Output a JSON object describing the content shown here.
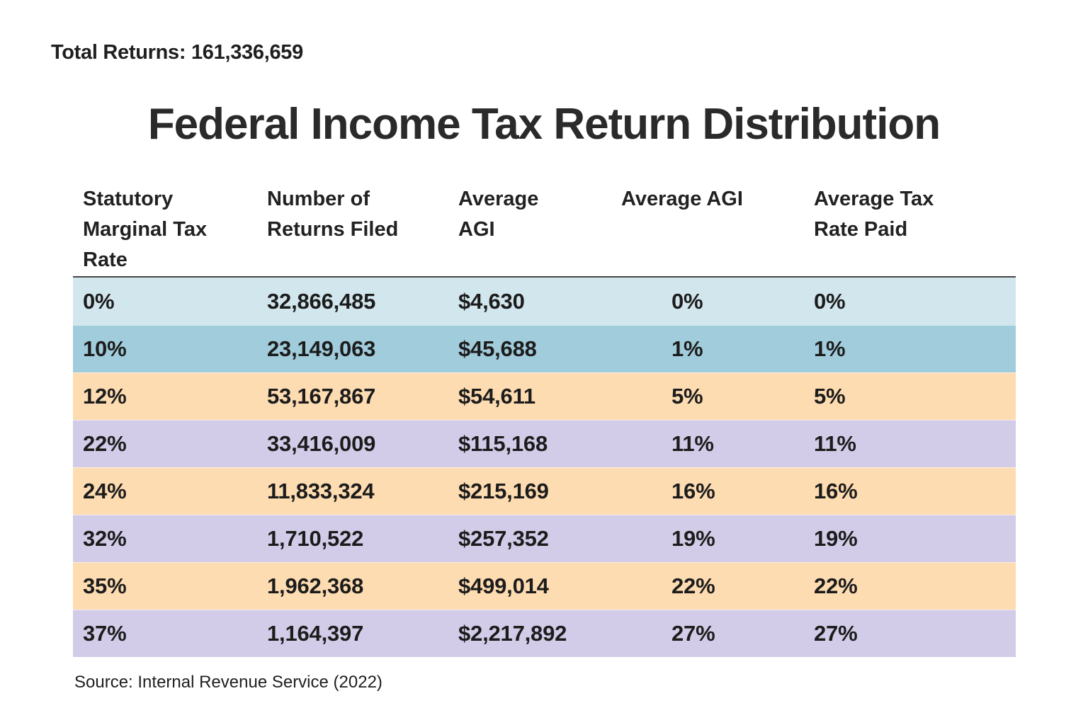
{
  "header": {
    "total_returns": "Total Returns: 161,336,659",
    "title": "Federal Income Tax Return Distribution"
  },
  "footer": {
    "source": "Source: Internal Revenue Service (2022)"
  },
  "colors": {
    "row_blue_light": "#d2e6ee",
    "row_blue_medium": "#a1ccdb",
    "row_peach": "#fedcb2",
    "row_lavender": "#d2cce8",
    "header_rule": "#454545",
    "text": "#1f1f1f"
  },
  "table": {
    "headers": [
      "Statutory Marginal Tax Rate",
      "Number of Returns Filed",
      "Average AGI",
      "Average AGI",
      "Average Tax Rate Paid"
    ],
    "rows": [
      {
        "rate": "0%",
        "returns": "32,866,485",
        "avg_agi": "$4,630",
        "avg_agi_pct": "0%",
        "avg_tax_pct": "0%",
        "bg": "#d2e6ee"
      },
      {
        "rate": "10%",
        "returns": "23,149,063",
        "avg_agi": "$45,688",
        "avg_agi_pct": "1%",
        "avg_tax_pct": "1%",
        "bg": "#a1ccdb"
      },
      {
        "rate": "12%",
        "returns": "53,167,867",
        "avg_agi": "$54,611",
        "avg_agi_pct": "5%",
        "avg_tax_pct": "5%",
        "bg": "#fedcb2"
      },
      {
        "rate": "22%",
        "returns": "33,416,009",
        "avg_agi": "$115,168",
        "avg_agi_pct": "11%",
        "avg_tax_pct": "11%",
        "bg": "#d2cce8"
      },
      {
        "rate": "24%",
        "returns": "11,833,324",
        "avg_agi": "$215,169",
        "avg_agi_pct": "16%",
        "avg_tax_pct": "16%",
        "bg": "#fedcb2"
      },
      {
        "rate": "32%",
        "returns": "1,710,522",
        "avg_agi": "$257,352",
        "avg_agi_pct": "19%",
        "avg_tax_pct": "19%",
        "bg": "#d2cce8"
      },
      {
        "rate": "35%",
        "returns": "1,962,368",
        "avg_agi": "$499,014",
        "avg_agi_pct": "22%",
        "avg_tax_pct": "22%",
        "bg": "#fedcb2"
      },
      {
        "rate": "37%",
        "returns": "1,164,397",
        "avg_agi": "$2,217,892",
        "avg_agi_pct": "27%",
        "avg_tax_pct": "27%",
        "bg": "#d2cce8"
      }
    ]
  },
  "chart_data": {
    "type": "table",
    "title": "Federal Income Tax Return Distribution",
    "total_returns": 161336659,
    "columns": [
      "Statutory Marginal Tax Rate",
      "Number of Returns Filed",
      "Average AGI",
      "Average AGI",
      "Average Tax Rate Paid"
    ],
    "rows": [
      {
        "statutory_marginal_tax_rate": "0%",
        "number_of_returns_filed": 32866485,
        "average_agi_usd": 4630,
        "average_agi_pct": "0%",
        "average_tax_rate_paid": "0%"
      },
      {
        "statutory_marginal_tax_rate": "10%",
        "number_of_returns_filed": 23149063,
        "average_agi_usd": 45688,
        "average_agi_pct": "1%",
        "average_tax_rate_paid": "1%"
      },
      {
        "statutory_marginal_tax_rate": "12%",
        "number_of_returns_filed": 53167867,
        "average_agi_usd": 54611,
        "average_agi_pct": "5%",
        "average_tax_rate_paid": "5%"
      },
      {
        "statutory_marginal_tax_rate": "22%",
        "number_of_returns_filed": 33416009,
        "average_agi_usd": 115168,
        "average_agi_pct": "11%",
        "average_tax_rate_paid": "11%"
      },
      {
        "statutory_marginal_tax_rate": "24%",
        "number_of_returns_filed": 11833324,
        "average_agi_usd": 215169,
        "average_agi_pct": "16%",
        "average_tax_rate_paid": "16%"
      },
      {
        "statutory_marginal_tax_rate": "32%",
        "number_of_returns_filed": 1710522,
        "average_agi_usd": 257352,
        "average_agi_pct": "19%",
        "average_tax_rate_paid": "19%"
      },
      {
        "statutory_marginal_tax_rate": "35%",
        "number_of_returns_filed": 1962368,
        "average_agi_usd": 499014,
        "average_agi_pct": "22%",
        "average_tax_rate_paid": "22%"
      },
      {
        "statutory_marginal_tax_rate": "37%",
        "number_of_returns_filed": 1164397,
        "average_agi_usd": 2217892,
        "average_agi_pct": "27%",
        "average_tax_rate_paid": "27%"
      }
    ],
    "source": "Source: Internal Revenue Service (2022)",
    "layout": {
      "grid": "off",
      "legend": "none",
      "row_band_colors": [
        "#d2e6ee",
        "#a1ccdb",
        "#fedcb2",
        "#d2cce8",
        "#fedcb2",
        "#d2cce8",
        "#fedcb2",
        "#d2cce8"
      ]
    }
  }
}
